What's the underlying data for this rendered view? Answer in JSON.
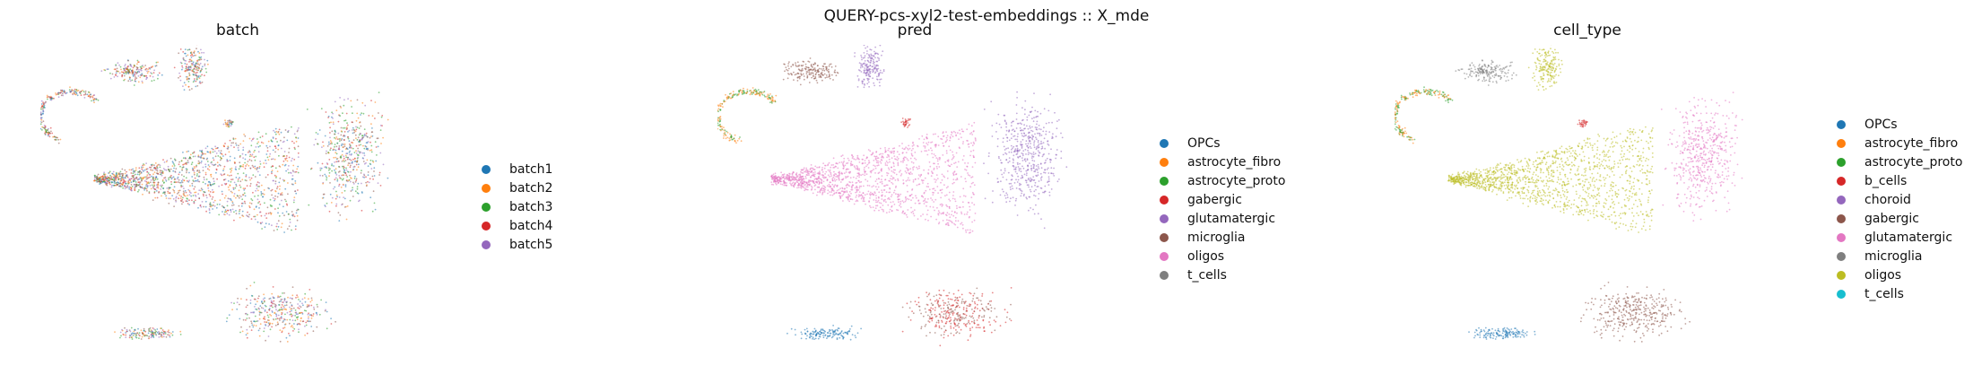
{
  "suptitle": "QUERY-pcs-xyl2-test-embeddings :: X_mde",
  "chart_data": [
    {
      "type": "scatter",
      "title": "batch",
      "xlabel": "",
      "ylabel": "",
      "axes_visible": false,
      "legend_position": "right",
      "categories": [
        "batch1",
        "batch2",
        "batch3",
        "batch4",
        "batch5"
      ],
      "colors": [
        "#1f77b4",
        "#ff7f0e",
        "#2ca02c",
        "#d62728",
        "#9467bd"
      ],
      "mixing": "all batches intermixed across every cluster"
    },
    {
      "type": "scatter",
      "title": "pred",
      "xlabel": "",
      "ylabel": "",
      "axes_visible": false,
      "legend_position": "right",
      "categories": [
        "OPCs",
        "astrocyte_fibro",
        "astrocyte_proto",
        "gabergic",
        "glutamatergic",
        "microglia",
        "oligos",
        "t_cells"
      ],
      "colors": [
        "#1f77b4",
        "#ff7f0e",
        "#2ca02c",
        "#d62728",
        "#9467bd",
        "#8c564b",
        "#e377c2",
        "#7f7f7f"
      ]
    },
    {
      "type": "scatter",
      "title": "cell_type",
      "xlabel": "",
      "ylabel": "",
      "axes_visible": false,
      "legend_position": "right",
      "categories": [
        "OPCs",
        "astrocyte_fibro",
        "astrocyte_proto",
        "b_cells",
        "choroid",
        "gabergic",
        "glutamatergic",
        "microglia",
        "oligos",
        "t_cells"
      ],
      "colors": [
        "#1f77b4",
        "#ff7f0e",
        "#2ca02c",
        "#d62728",
        "#9467bd",
        "#8c564b",
        "#e377c2",
        "#7f7f7f",
        "#bcbd22",
        "#17becf"
      ]
    }
  ]
}
